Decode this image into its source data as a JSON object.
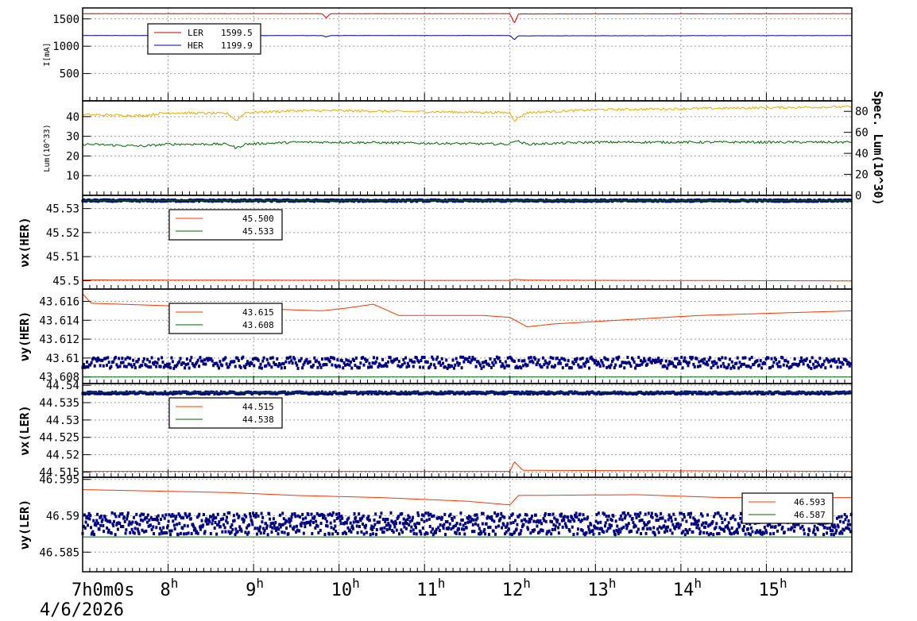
{
  "chart_data": {
    "type": "line",
    "date_label": "4/6/2026",
    "x_start_label": "7h0m0s",
    "x_ticks": [
      "8",
      "9",
      "10",
      "11",
      "12",
      "13",
      "14",
      "15"
    ],
    "x_range_hours": [
      7,
      16
    ],
    "panels": [
      {
        "ylabel": "I[mA]",
        "ylim": [
          0,
          1700
        ],
        "yticks": [
          "500",
          "1000",
          "1500"
        ],
        "ytick_values": [
          500,
          1000,
          1500
        ],
        "series": [
          {
            "name": "LER",
            "value_label": "1599.5",
            "color": "#cc0000",
            "values": [
              [
                7,
                1595
              ],
              [
                9.8,
                1595
              ],
              [
                9.85,
                1520
              ],
              [
                9.9,
                1595
              ],
              [
                12.0,
                1595
              ],
              [
                12.05,
                1420
              ],
              [
                12.1,
                1590
              ],
              [
                16,
                1595
              ]
            ]
          },
          {
            "name": "HER",
            "value_label": "1199.9",
            "color": "#000099",
            "values": [
              [
                7,
                1195
              ],
              [
                9.8,
                1195
              ],
              [
                9.85,
                1170
              ],
              [
                9.9,
                1195
              ],
              [
                12.0,
                1195
              ],
              [
                12.05,
                1120
              ],
              [
                12.1,
                1190
              ],
              [
                16,
                1195
              ]
            ]
          }
        ],
        "legend": {
          "position": "upper-left"
        }
      },
      {
        "ylabel": "Lum(10^33)",
        "ylim": [
          0,
          48
        ],
        "yticks": [
          "10",
          "20",
          "30",
          "40"
        ],
        "ytick_values": [
          10,
          20,
          30,
          40
        ],
        "y2label": "Spec. Lum(10^30)",
        "y2lim": [
          0,
          90
        ],
        "y2ticks": [
          "0",
          "20",
          "40",
          "60",
          "80"
        ],
        "series": [
          {
            "color": "#e6ac00",
            "values": [
              [
                7,
                41
              ],
              [
                7.7,
                40.5
              ],
              [
                8.0,
                42
              ],
              [
                8.7,
                41.5
              ],
              [
                8.8,
                38
              ],
              [
                8.9,
                42
              ],
              [
                9.5,
                43
              ],
              [
                10,
                43
              ],
              [
                11,
                42.5
              ],
              [
                12,
                42
              ],
              [
                12.05,
                38
              ],
              [
                12.2,
                42
              ],
              [
                13,
                43.5
              ],
              [
                14,
                44
              ],
              [
                15,
                44.5
              ],
              [
                16,
                45
              ]
            ]
          },
          {
            "color": "#006600",
            "values": [
              [
                7,
                26
              ],
              [
                7.7,
                25
              ],
              [
                8.0,
                26
              ],
              [
                8.7,
                26
              ],
              [
                8.8,
                24
              ],
              [
                8.9,
                26
              ],
              [
                9.5,
                27
              ],
              [
                10,
                27
              ],
              [
                11,
                26.5
              ],
              [
                12,
                26
              ],
              [
                12.05,
                28
              ],
              [
                12.2,
                26
              ],
              [
                13,
                27
              ],
              [
                14,
                27
              ],
              [
                15,
                27
              ],
              [
                16,
                27
              ]
            ]
          }
        ]
      },
      {
        "ylabel": "νx(HER)",
        "ylim": [
          45.4965,
          45.5355
        ],
        "yticks": [
          "45.5",
          "45.51",
          "45.52",
          "45.53"
        ],
        "ytick_values": [
          45.5,
          45.51,
          45.52,
          45.53
        ],
        "series": [
          {
            "value_label": "45.500",
            "color": "#ff3300",
            "values": [
              [
                7,
                45.5003
              ],
              [
                9.0,
                45.5002
              ],
              [
                11,
                45.5001
              ],
              [
                12.0,
                45.5001
              ],
              [
                12.05,
                45.5006
              ],
              [
                12.2,
                45.5002
              ],
              [
                16,
                45.4999
              ]
            ]
          },
          {
            "value_label": "45.533",
            "color": "#006600",
            "values": [
              [
                7,
                45.5333
              ],
              [
                16,
                45.5333
              ]
            ]
          }
        ],
        "dots": {
          "color": "#000080",
          "center": 45.5333,
          "spread": 0.0003
        },
        "legend": {
          "position": "upper-left"
        }
      },
      {
        "ylabel": "νy(HER)",
        "ylim": [
          43.6073,
          43.6173
        ],
        "yticks": [
          "43.608",
          "43.61",
          "43.612",
          "43.614",
          "43.616"
        ],
        "ytick_values": [
          43.608,
          43.61,
          43.612,
          43.614,
          43.616
        ],
        "series": [
          {
            "value_label": "43.615",
            "color": "#ff3300",
            "values": [
              [
                7,
                43.6168
              ],
              [
                7.1,
                43.6158
              ],
              [
                9.8,
                43.615
              ],
              [
                10.1,
                43.6153
              ],
              [
                10.4,
                43.6157
              ],
              [
                10.7,
                43.6145
              ],
              [
                11.7,
                43.6145
              ],
              [
                12.0,
                43.6143
              ],
              [
                12.2,
                43.6133
              ],
              [
                12.5,
                43.6136
              ],
              [
                14.2,
                43.6145
              ],
              [
                16,
                43.615
              ]
            ]
          },
          {
            "value_label": "43.608",
            "color": "#006600",
            "values": [
              [
                7,
                43.608
              ],
              [
                16,
                43.608
              ]
            ]
          }
        ],
        "dots": {
          "color": "#000080",
          "center": 43.6095,
          "spread": 0.0006
        },
        "legend": {
          "position": "upper-left"
        }
      },
      {
        "ylabel": "νx(LER)",
        "ylim": [
          44.5135,
          44.5405
        ],
        "yticks": [
          "44.515",
          "44.52",
          "44.525",
          "44.53",
          "44.535",
          "44.54"
        ],
        "ytick_values": [
          44.515,
          44.52,
          44.525,
          44.53,
          44.535,
          44.54
        ],
        "series": [
          {
            "value_label": "44.515",
            "color": "#ff3300",
            "values": [
              [
                7,
                44.5152
              ],
              [
                12.0,
                44.5152
              ],
              [
                12.05,
                44.518
              ],
              [
                12.15,
                44.5155
              ],
              [
                16,
                44.5152
              ]
            ]
          },
          {
            "value_label": "44.538",
            "color": "#006600",
            "values": [
              [
                7,
                44.538
              ],
              [
                16,
                44.538
              ]
            ]
          }
        ],
        "dots": {
          "color": "#000080",
          "center": 44.5378,
          "spread": 0.0003
        },
        "legend": {
          "position": "upper-left"
        }
      },
      {
        "ylabel": "νy(LER)",
        "ylim": [
          46.5823,
          46.5953
        ],
        "yticks": [
          "46.585",
          "46.59",
          "46.595"
        ],
        "ytick_values": [
          46.585,
          46.59,
          46.595
        ],
        "series": [
          {
            "value_label": "46.593",
            "color": "#ff3300",
            "values": [
              [
                7,
                46.5936
              ],
              [
                8.7,
                46.5932
              ],
              [
                9.5,
                46.5928
              ],
              [
                10.5,
                46.5925
              ],
              [
                11.5,
                46.592
              ],
              [
                12.0,
                46.5915
              ],
              [
                12.1,
                46.5928
              ],
              [
                13.5,
                46.5929
              ],
              [
                14.5,
                46.5925
              ],
              [
                16,
                46.5925
              ]
            ]
          },
          {
            "value_label": "46.587",
            "color": "#006600",
            "values": [
              [
                7,
                46.5871
              ],
              [
                16,
                46.5871
              ]
            ]
          }
        ],
        "dots": {
          "color": "#000080",
          "center": 46.5889,
          "spread": 0.0015
        },
        "legend": {
          "position": "right"
        }
      }
    ]
  }
}
